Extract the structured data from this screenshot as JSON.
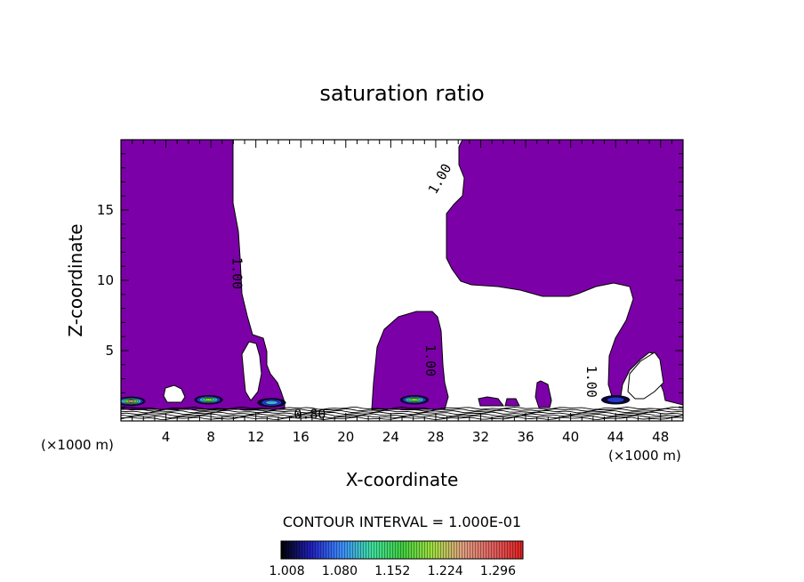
{
  "chart_data": {
    "type": "heatmap",
    "title": "saturation ratio",
    "xlabel": "X-coordinate",
    "ylabel": "Z-coordinate",
    "x_unit_left": "(×1000 m)",
    "x_unit_right": "(×1000 m)",
    "xlim": [
      0,
      50
    ],
    "ylim": [
      0,
      20
    ],
    "x_ticks": [
      4,
      8,
      12,
      16,
      20,
      24,
      28,
      32,
      36,
      40,
      44,
      48
    ],
    "y_ticks": [
      5,
      10,
      15
    ],
    "contour_interval_label": "CONTOUR INTERVAL = 1.000E-01",
    "contour_labels": [
      {
        "text": "1.00",
        "x": 10.3,
        "y": 10.5,
        "rotation": 90
      },
      {
        "text": "1.00",
        "x": 28.4,
        "y": 17.2,
        "rotation": -60
      },
      {
        "text": "1.00",
        "x": 27.5,
        "y": 4.3,
        "rotation": 90
      },
      {
        "text": "1.00",
        "x": 41.8,
        "y": 2.8,
        "rotation": 90
      },
      {
        "text": "0.80",
        "x": 16.8,
        "y": 0.45,
        "rotation": 0
      }
    ],
    "fill_color": "#7c00a8",
    "colorbar": {
      "tick_labels": [
        "1.008",
        "1.080",
        "1.152",
        "1.224",
        "1.296"
      ],
      "tick_values": [
        1.008,
        1.08,
        1.152,
        1.224,
        1.296
      ],
      "range": [
        1.0,
        1.33
      ],
      "colors": [
        "#000000",
        "#2020c0",
        "#3c8cff",
        "#40e0a0",
        "#40d040",
        "#a0e040",
        "#e0a080",
        "#e06060",
        "#e02020"
      ]
    },
    "hotspots": [
      {
        "x": 0.9,
        "y": 1.4,
        "peak": 1.25
      },
      {
        "x": 7.8,
        "y": 1.5,
        "peak": 1.2
      },
      {
        "x": 13.4,
        "y": 1.3,
        "peak": 1.1
      },
      {
        "x": 26.1,
        "y": 1.5,
        "peak": 1.22
      },
      {
        "x": 44.0,
        "y": 1.5,
        "peak": 1.08
      }
    ]
  }
}
